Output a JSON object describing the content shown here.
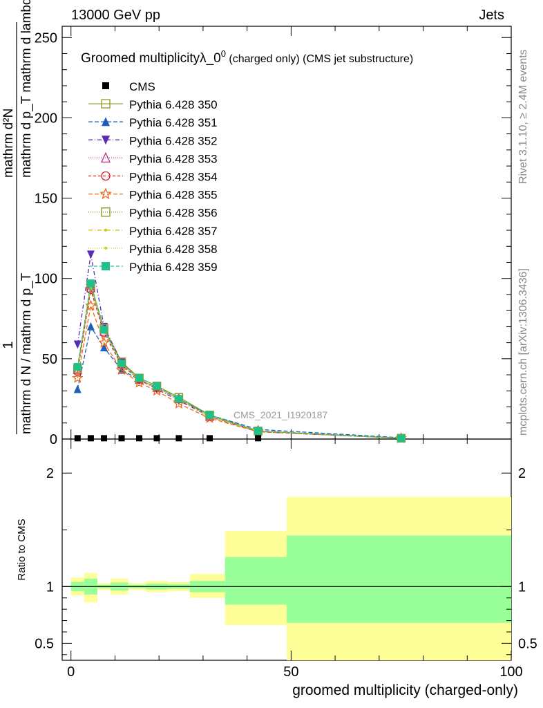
{
  "header": {
    "energy_label": "13000 GeV pp",
    "process_label": "Jets"
  },
  "side_text": {
    "rivet": "Rivet 3.1.10, ≥ 2.4M events",
    "mcplots": "mcplots.cern.ch [arXiv:1306.3436]"
  },
  "watermark": "CMS_2021_I1920187",
  "ylabel": {
    "one": "1",
    "denominator": "mathrm d N / mathrm d p_T",
    "numerator_top": "mathrm d²N",
    "numerator_bottom": "mathrm d p_T mathrm d lambda"
  },
  "colors": {
    "cms": "#000000",
    "band_outer": "#ffff99",
    "band_inner": "#99ff99"
  },
  "chart_data": [
    {
      "id": "main",
      "type": "line",
      "title": "Groomed multiplicityλ_0⁰ (charged only) (CMS jet substructure)",
      "title_main": "Groomed multiplicityλ_0",
      "title_sup": "0",
      "title_suffix": " (charged only) (CMS jet substructure)",
      "xlabel": "groomed multiplicity (charged-only)",
      "ylabel": "1/(mathrm d N / mathrm d p_T) mathrm d²N/(mathrm d p_T mathrm d lambda)",
      "xlim": [
        -2,
        100
      ],
      "ylim": [
        0,
        257
      ],
      "yticks": [
        0,
        50,
        100,
        150,
        200,
        250
      ],
      "x": [
        1.5,
        4.5,
        7.5,
        11.5,
        15.5,
        19.5,
        24.5,
        31.5,
        42.5,
        75
      ],
      "series": [
        {
          "name": "CMS",
          "color": "#000000",
          "dash": "",
          "marker": "square-filled",
          "values": [
            0.5,
            0.5,
            0.5,
            0.5,
            0.5,
            0.5,
            0.5,
            0.5,
            0.5,
            0
          ]
        },
        {
          "name": "Pythia 6.428 350",
          "color": "#999933",
          "dash": "",
          "marker": "square-open",
          "values": [
            44,
            96,
            69,
            48,
            38,
            33,
            26,
            15,
            5,
            0.5
          ]
        },
        {
          "name": "Pythia 6.428 351",
          "color": "#1f5fb8",
          "dash": "6,3",
          "marker": "triangle-up-filled",
          "values": [
            31,
            70,
            57,
            43,
            37,
            32,
            25,
            15,
            6,
            0.8
          ]
        },
        {
          "name": "Pythia 6.428 352",
          "color": "#5b2bb5",
          "dash": "6,3,1,3",
          "marker": "triangle-down-filled",
          "values": [
            59,
            115,
            70,
            48,
            37,
            31,
            24,
            14,
            4.5,
            0.5
          ]
        },
        {
          "name": "Pythia 6.428 353",
          "color": "#c42a8f",
          "dash": "1,2",
          "marker": "triangle-up-open",
          "values": [
            43,
            94,
            67,
            47,
            37,
            32,
            25,
            14,
            5,
            0.5
          ]
        },
        {
          "name": "Pythia 6.428 354",
          "color": "#d42020",
          "dash": "4,3",
          "marker": "circle-open",
          "values": [
            42,
            93,
            66,
            46,
            37,
            32,
            25,
            14,
            5,
            0.5
          ]
        },
        {
          "name": "Pythia 6.428 355",
          "color": "#ee6b1a",
          "dash": "6,3",
          "marker": "star-open",
          "values": [
            38,
            83,
            60,
            43,
            35,
            30,
            22,
            13,
            4.5,
            0.5
          ]
        },
        {
          "name": "Pythia 6.428 356",
          "color": "#8c9a2a",
          "dash": "1,2",
          "marker": "square-open",
          "values": [
            44,
            96,
            69,
            48,
            38,
            33,
            26,
            15,
            5,
            0.5
          ]
        },
        {
          "name": "Pythia 6.428 357",
          "color": "#cfc214",
          "dash": "6,3,1,3",
          "marker": "dot",
          "values": [
            44,
            95,
            68,
            47,
            37,
            32,
            25,
            14,
            5,
            0.5
          ]
        },
        {
          "name": "Pythia 6.428 358",
          "color": "#b8d420",
          "dash": "1,2",
          "marker": "dot",
          "values": [
            44,
            95,
            68,
            47,
            37,
            32,
            25,
            14,
            5,
            0.5
          ]
        },
        {
          "name": "Pythia 6.428 359",
          "color": "#1fc08a",
          "dash": "5,3",
          "marker": "square-filled",
          "values": [
            45,
            97,
            68,
            47,
            38,
            33,
            25,
            15,
            5,
            0.5
          ]
        }
      ]
    },
    {
      "id": "ratio",
      "type": "area",
      "ylabel": "Ratio to CMS",
      "xlabel": "groomed multiplicity (charged-only)",
      "xlim": [
        -2,
        100
      ],
      "ylim": [
        0.35,
        2.3
      ],
      "yticks": [
        0.5,
        1,
        2
      ],
      "xticks": [
        0,
        50,
        100
      ],
      "reference_line": 1.0,
      "bins": [
        {
          "lo": 0,
          "hi": 3,
          "outer": [
            0.92,
            1.08
          ],
          "inner": [
            0.96,
            1.04
          ]
        },
        {
          "lo": 3,
          "hi": 6,
          "outer": [
            0.86,
            1.12
          ],
          "inner": [
            0.93,
            1.07
          ]
        },
        {
          "lo": 6,
          "hi": 9,
          "outer": [
            0.97,
            1.03
          ],
          "inner": [
            0.985,
            1.015
          ]
        },
        {
          "lo": 9,
          "hi": 13,
          "outer": [
            0.93,
            1.07
          ],
          "inner": [
            0.965,
            1.035
          ]
        },
        {
          "lo": 13,
          "hi": 17,
          "outer": [
            0.97,
            1.03
          ],
          "inner": [
            0.985,
            1.015
          ]
        },
        {
          "lo": 17,
          "hi": 22,
          "outer": [
            0.95,
            1.05
          ],
          "inner": [
            0.975,
            1.025
          ]
        },
        {
          "lo": 22,
          "hi": 27,
          "outer": [
            0.96,
            1.04
          ],
          "inner": [
            0.98,
            1.02
          ]
        },
        {
          "lo": 27,
          "hi": 35,
          "outer": [
            0.9,
            1.11
          ],
          "inner": [
            0.95,
            1.05
          ]
        },
        {
          "lo": 35,
          "hi": 49,
          "outer": [
            0.66,
            1.49
          ],
          "inner": [
            0.84,
            1.26
          ]
        },
        {
          "lo": 49,
          "hi": 100,
          "outer": [
            0.3,
            1.79
          ],
          "inner": [
            0.68,
            1.45
          ]
        }
      ]
    }
  ]
}
